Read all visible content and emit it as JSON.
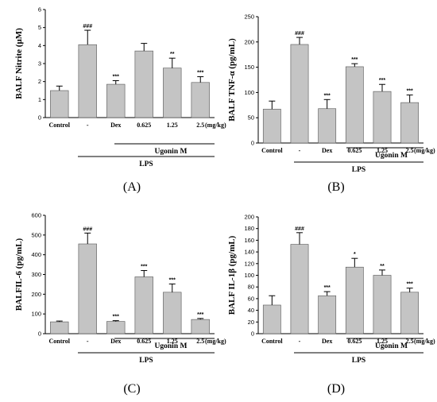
{
  "style": {
    "bar_fill": "#c4c4c4",
    "bar_stroke": "#555555",
    "axis_color": "#000000"
  },
  "chart_data": [
    {
      "type": "bar",
      "panel": "(A)",
      "ylabel": "BALF Nitrite (μM)",
      "ylim": [
        0,
        6
      ],
      "yticks": [
        0,
        1,
        2,
        3,
        4,
        5,
        6
      ],
      "categories": [
        "Control",
        "-",
        "Dex",
        "0.625",
        "1.25",
        "2.5"
      ],
      "unit_label": "(mg/kg)",
      "values": [
        1.5,
        4.05,
        1.85,
        3.7,
        2.75,
        1.95
      ],
      "errors": [
        0.25,
        0.8,
        0.2,
        0.42,
        0.55,
        0.32
      ],
      "annotations": [
        "",
        "###",
        "***",
        "",
        "**",
        "***"
      ],
      "group_ugonin": "Ugonin M",
      "group_lps": "LPS"
    },
    {
      "type": "bar",
      "panel": "(B)",
      "ylabel": "BALF TNF-α (pg/mL)",
      "ylim": [
        0,
        250
      ],
      "yticks": [
        0,
        50,
        100,
        150,
        200,
        250
      ],
      "categories": [
        "Control",
        "-",
        "Dex",
        "0.625",
        "1.25",
        "2.5"
      ],
      "unit_label": "(mg/kg)",
      "values": [
        67,
        195,
        68,
        151,
        102,
        80
      ],
      "errors": [
        16,
        14,
        18,
        6,
        14,
        15
      ],
      "annotations": [
        "",
        "###",
        "***",
        "***",
        "***",
        "***"
      ],
      "group_ugonin": "Ugonin M",
      "group_lps": "LPS"
    },
    {
      "type": "bar",
      "panel": "(C)",
      "ylabel": "BALFIL-6 (pg/mL)",
      "ylim": [
        0,
        600
      ],
      "yticks": [
        0,
        100,
        200,
        300,
        400,
        500,
        600
      ],
      "categories": [
        "Control",
        "-",
        "Dex",
        "0.625",
        "1.25",
        "2.5"
      ],
      "unit_label": "(mg/kg)",
      "values": [
        60,
        455,
        62,
        288,
        210,
        72
      ],
      "errors": [
        4,
        55,
        4,
        32,
        42,
        5
      ],
      "annotations": [
        "",
        "###",
        "***",
        "***",
        "***",
        "***"
      ],
      "group_ugonin": "Ugonin M",
      "group_lps": "LPS"
    },
    {
      "type": "bar",
      "panel": "(D)",
      "ylabel": "BALF IL-1β (pg/mL)",
      "ylim": [
        0,
        200
      ],
      "yticks": [
        0,
        20,
        40,
        60,
        80,
        100,
        120,
        140,
        160,
        180,
        200
      ],
      "categories": [
        "Control",
        "-",
        "Dex",
        "0.625",
        "1.25",
        "2.5"
      ],
      "unit_label": "(mg/kg)",
      "values": [
        49,
        153,
        65,
        114,
        100,
        71
      ],
      "errors": [
        16,
        20,
        7,
        15,
        9,
        7
      ],
      "annotations": [
        "",
        "###",
        "***",
        "*",
        "**",
        "***"
      ],
      "group_ugonin": "Ugonin M",
      "group_lps": "LPS"
    }
  ]
}
